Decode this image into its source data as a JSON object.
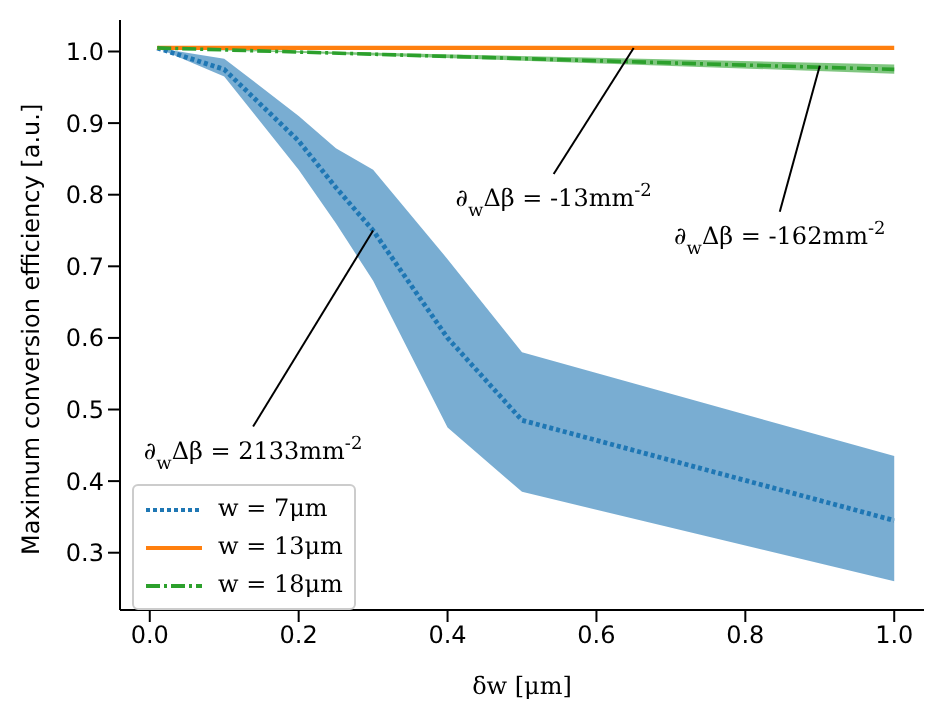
{
  "chart_data": {
    "type": "line",
    "xlabel": "δw [μm]",
    "ylabel": "Maximum conversion efficiency [a.u.]",
    "xlim": [
      -0.04,
      1.04
    ],
    "ylim": [
      0.22,
      1.044
    ],
    "xticks": [
      {
        "value": 0,
        "label": "0.0"
      },
      0.2,
      0.4,
      0.6,
      0.8,
      {
        "value": 1,
        "label": "1.0"
      }
    ],
    "yticks": [
      0.3,
      0.4,
      0.5,
      0.6,
      0.7,
      0.8,
      0.9,
      {
        "value": 1,
        "label": "1.0"
      }
    ],
    "grid": false,
    "legend": "bottom left",
    "marker": "none",
    "series": [
      {
        "name": "w = 7μm",
        "color": "#1f77b4",
        "line_style": "dotted",
        "x": [
          0.01,
          0.1,
          0.2,
          0.25,
          0.3,
          0.4,
          0.5,
          1.0
        ],
        "values": [
          1.005,
          0.975,
          0.875,
          0.81,
          0.75,
          0.6,
          0.485,
          0.345
        ],
        "lower": [
          1.005,
          0.965,
          0.835,
          0.76,
          0.68,
          0.475,
          0.385,
          0.26
        ],
        "upper": [
          1.005,
          0.99,
          0.91,
          0.865,
          0.835,
          0.71,
          0.58,
          0.435
        ]
      },
      {
        "name": "w = 13μm",
        "color": "#ff7f0e",
        "line_style": "solid",
        "x": [
          0.01,
          1.0
        ],
        "values": [
          1.005,
          1.005
        ]
      },
      {
        "name": "w = 18μm",
        "color": "#2ca02c",
        "line_style": "dashed",
        "x": [
          0.01,
          1.0
        ],
        "values": [
          1.005,
          0.975
        ],
        "lower": [
          1.005,
          0.969
        ],
        "upper": [
          1.005,
          0.982
        ]
      }
    ],
    "annotations": [
      {
        "text": "∂$_{w}$Δβ = -13mm$^{-2}$",
        "x": 0.65,
        "y": 1.005
      },
      {
        "text": "∂$_{w}$Δβ = -162mm$^{-2}$",
        "x": 0.9,
        "y": 0.98
      },
      {
        "text": "∂$_{w}$Δβ = 2133mm$^{-2}$",
        "x": 0.3,
        "y": 0.75
      }
    ]
  }
}
